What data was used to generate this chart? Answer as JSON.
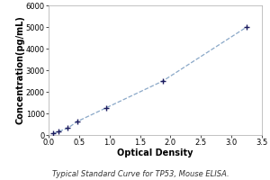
{
  "x_data": [
    0.078,
    0.156,
    0.313,
    0.469,
    0.938,
    1.875,
    3.25
  ],
  "y_data": [
    78,
    156,
    313,
    625,
    1250,
    2500,
    5000
  ],
  "xlabel": "Optical Density",
  "ylabel": "Concentration(pg/mL)",
  "caption": "Typical Standard Curve for TP53, Mouse ELISA.",
  "xlim": [
    0,
    3.5
  ],
  "ylim": [
    0,
    6000
  ],
  "xticks": [
    0,
    0.5,
    1,
    1.5,
    2,
    2.5,
    3,
    3.5
  ],
  "yticks": [
    0,
    1000,
    2000,
    3000,
    4000,
    5000,
    6000
  ],
  "line_color": "#8aa8c8",
  "marker_color": "#1a1a5e",
  "bg_color": "#ffffff",
  "plot_bg_color": "#ffffff",
  "marker": "+",
  "marker_size": 4,
  "marker_linewidth": 1.0,
  "line_style": "--",
  "line_width": 0.9,
  "caption_fontsize": 6.0,
  "axis_label_fontsize": 7.0,
  "tick_fontsize": 6.0,
  "spine_color": "#aaaaaa",
  "spine_linewidth": 0.5
}
